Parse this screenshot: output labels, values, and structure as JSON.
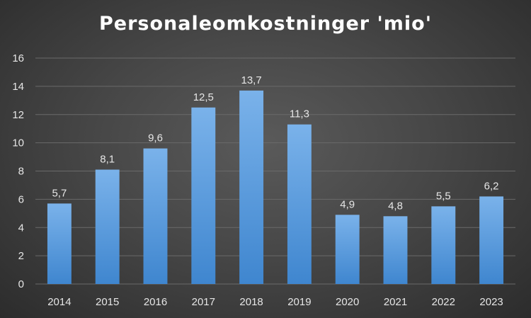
{
  "chart_data": {
    "type": "bar",
    "title": "Personaleomkostninger 'mio'",
    "xlabel": "",
    "ylabel": "",
    "categories": [
      "2014",
      "2015",
      "2016",
      "2017",
      "2018",
      "2019",
      "2020",
      "2021",
      "2022",
      "2023"
    ],
    "values": [
      5.7,
      8.1,
      9.6,
      12.5,
      13.7,
      11.3,
      4.9,
      4.8,
      5.5,
      6.2
    ],
    "data_labels": [
      "5,7",
      "8,1",
      "9,6",
      "12,5",
      "13,7",
      "11,3",
      "4,9",
      "4,8",
      "5,5",
      "6,2"
    ],
    "ylim": [
      0,
      16
    ],
    "yticks": [
      "0",
      "2",
      "4",
      "6",
      "8",
      "10",
      "12",
      "14",
      "16"
    ],
    "grid": true,
    "legend": "none",
    "colors": {
      "bar_top": "#7ab2ea",
      "bar_bottom": "#3f86cf",
      "grid": "#6a6a6a",
      "text": "#e6e6e6"
    }
  }
}
